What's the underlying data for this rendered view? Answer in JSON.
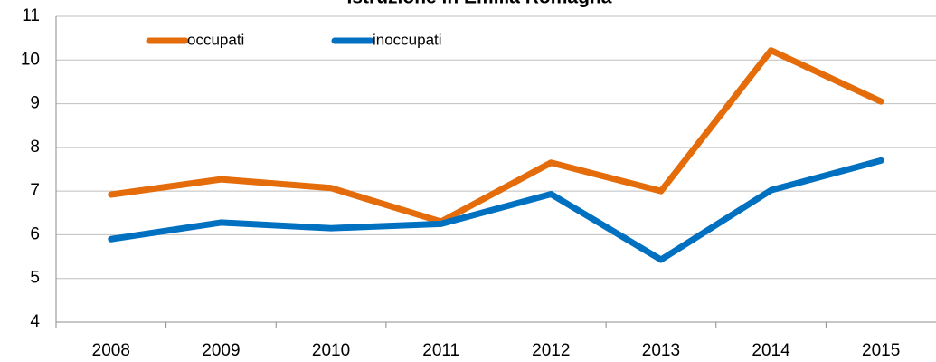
{
  "chart_data": {
    "type": "line",
    "title": "Istruzione in Emilia Romagna",
    "categories": [
      "2008",
      "2009",
      "2010",
      "2011",
      "2012",
      "2013",
      "2014",
      "2015"
    ],
    "series": [
      {
        "name": "occupati",
        "color": "#e46c0a",
        "values": [
          6.92,
          7.27,
          7.07,
          6.3,
          7.65,
          7.0,
          10.22,
          9.05
        ]
      },
      {
        "name": "inoccupati",
        "color": "#0070c0",
        "values": [
          5.9,
          6.28,
          6.15,
          6.25,
          6.93,
          5.43,
          7.02,
          7.7
        ]
      }
    ],
    "ylim": [
      4,
      11
    ],
    "yticks": [
      4,
      5,
      6,
      7,
      8,
      9,
      10,
      11
    ],
    "grid": true,
    "legend": "top-left"
  }
}
